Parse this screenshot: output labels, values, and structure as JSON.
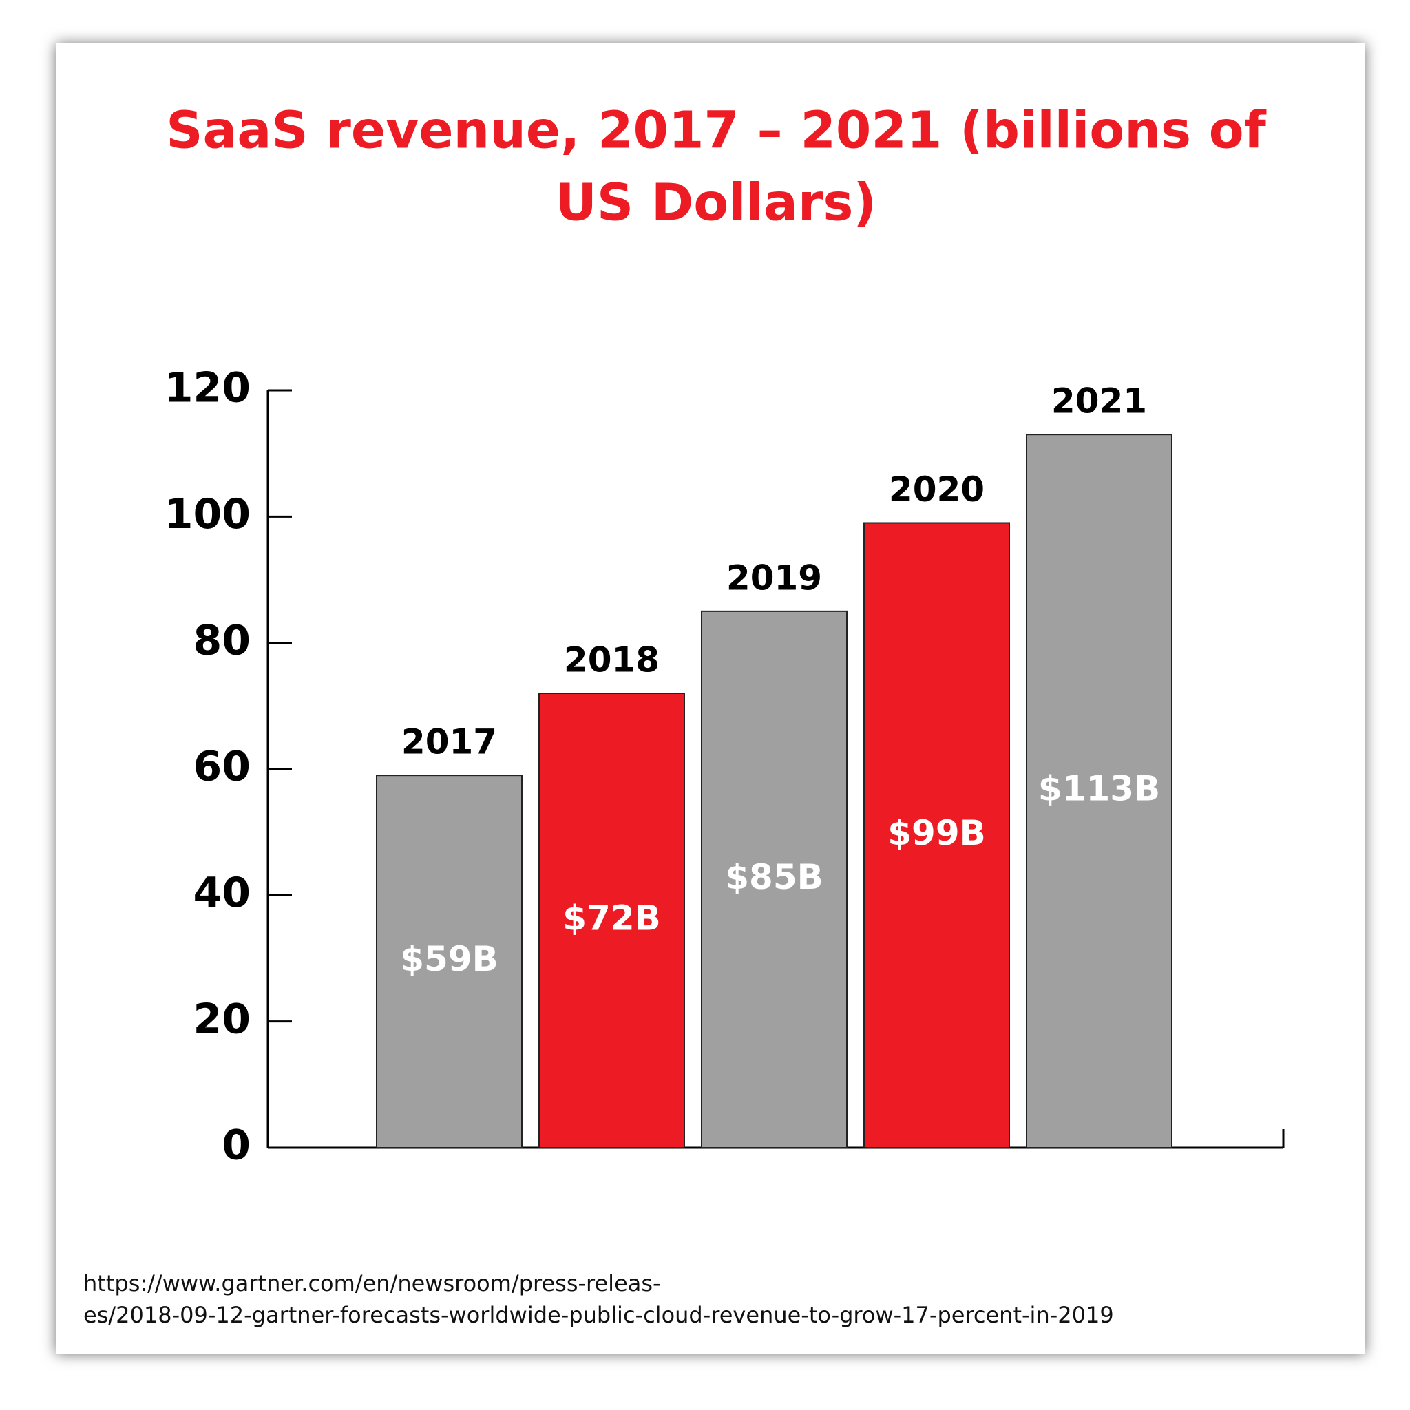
{
  "chart_data": {
    "type": "bar",
    "title": [
      "SaaS revenue, 2017 – 2021 (billions of",
      "US Dollars)"
    ],
    "categories": [
      "2017",
      "2018",
      "2019",
      "2020",
      "2021"
    ],
    "values": [
      59,
      72,
      85,
      99,
      113
    ],
    "value_labels": [
      "$59B",
      "$72B",
      "$85B",
      "$99B",
      "$113B"
    ],
    "colors": [
      "#a0a0a0",
      "#ed1c24",
      "#a0a0a0",
      "#ed1c24",
      "#a0a0a0"
    ],
    "ylim": [
      0,
      120
    ],
    "yticks": [
      0,
      20,
      40,
      60,
      80,
      100,
      120
    ],
    "grid": false,
    "source": [
      "https://www.gartner.com/en/newsroom/press-releas-",
      "es/2018-09-12-gartner-forecasts-worldwide-public-cloud-revenue-to-grow-17-percent-in-2019"
    ]
  }
}
